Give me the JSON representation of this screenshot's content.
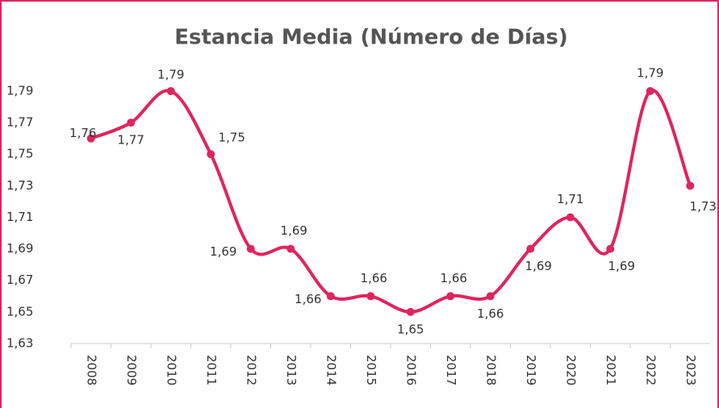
{
  "chart_data": {
    "type": "line",
    "title": "Estancia Media (Número de Días)",
    "categories": [
      "2008",
      "2009",
      "2010",
      "2011",
      "2012",
      "2013",
      "2014",
      "2015",
      "2016",
      "2017",
      "2018",
      "2019",
      "2020",
      "2021",
      "2022",
      "2023"
    ],
    "series": [
      {
        "color": "#e0245e",
        "values": [
          1.76,
          1.77,
          1.79,
          1.75,
          1.69,
          1.69,
          1.66,
          1.66,
          1.65,
          1.66,
          1.66,
          1.69,
          1.71,
          1.69,
          1.79,
          1.73
        ],
        "value_labels": [
          "1,76",
          "1,77",
          "1,79",
          "1,75",
          "1,69",
          "1,69",
          "1,66",
          "1,66",
          "1,65",
          "1,66",
          "1,66",
          "1,69",
          "1,71",
          "1,69",
          "1,79",
          "1,73"
        ]
      }
    ],
    "ylim": [
      1.63,
      1.8
    ],
    "yticks": [
      {
        "value": 1.63,
        "label": "1,63"
      },
      {
        "value": 1.65,
        "label": "1,65"
      },
      {
        "value": 1.67,
        "label": "1,67"
      },
      {
        "value": 1.69,
        "label": "1,69"
      },
      {
        "value": 1.71,
        "label": "1,71"
      },
      {
        "value": 1.73,
        "label": "1,73"
      },
      {
        "value": 1.75,
        "label": "1,75"
      },
      {
        "value": 1.77,
        "label": "1,77"
      },
      {
        "value": 1.79,
        "label": "1,79"
      }
    ]
  }
}
